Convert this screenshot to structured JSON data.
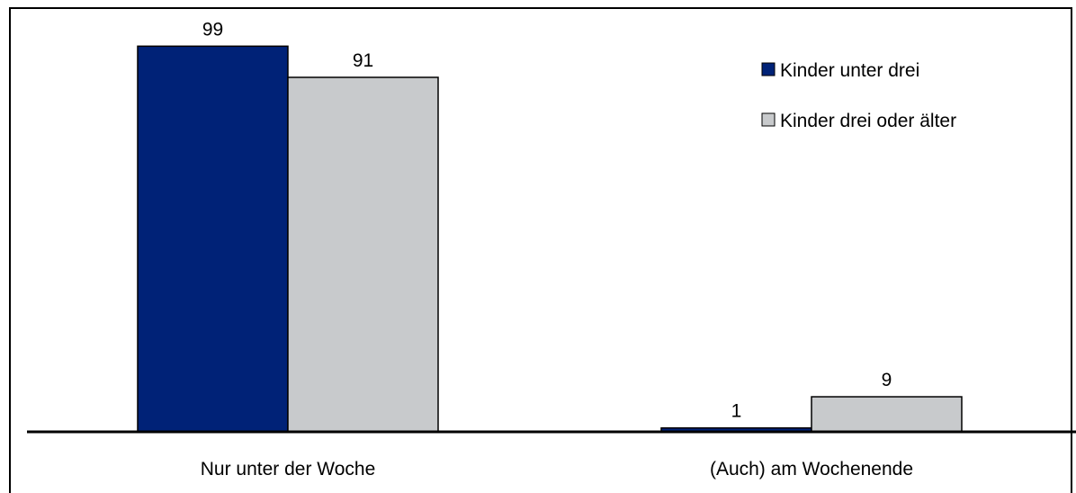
{
  "chart_data": {
    "type": "bar",
    "categories": [
      "Nur unter der Woche",
      "(Auch) am Wochenende"
    ],
    "series": [
      {
        "name": "Kinder unter drei",
        "values": [
          99,
          1
        ],
        "color": "#002277"
      },
      {
        "name": "Kinder drei oder älter",
        "values": [
          91,
          9
        ],
        "color": "#C8CACC"
      }
    ],
    "ylim": [
      0,
      100
    ],
    "grid": false,
    "legend_position": "top-right",
    "data_labels": true
  }
}
